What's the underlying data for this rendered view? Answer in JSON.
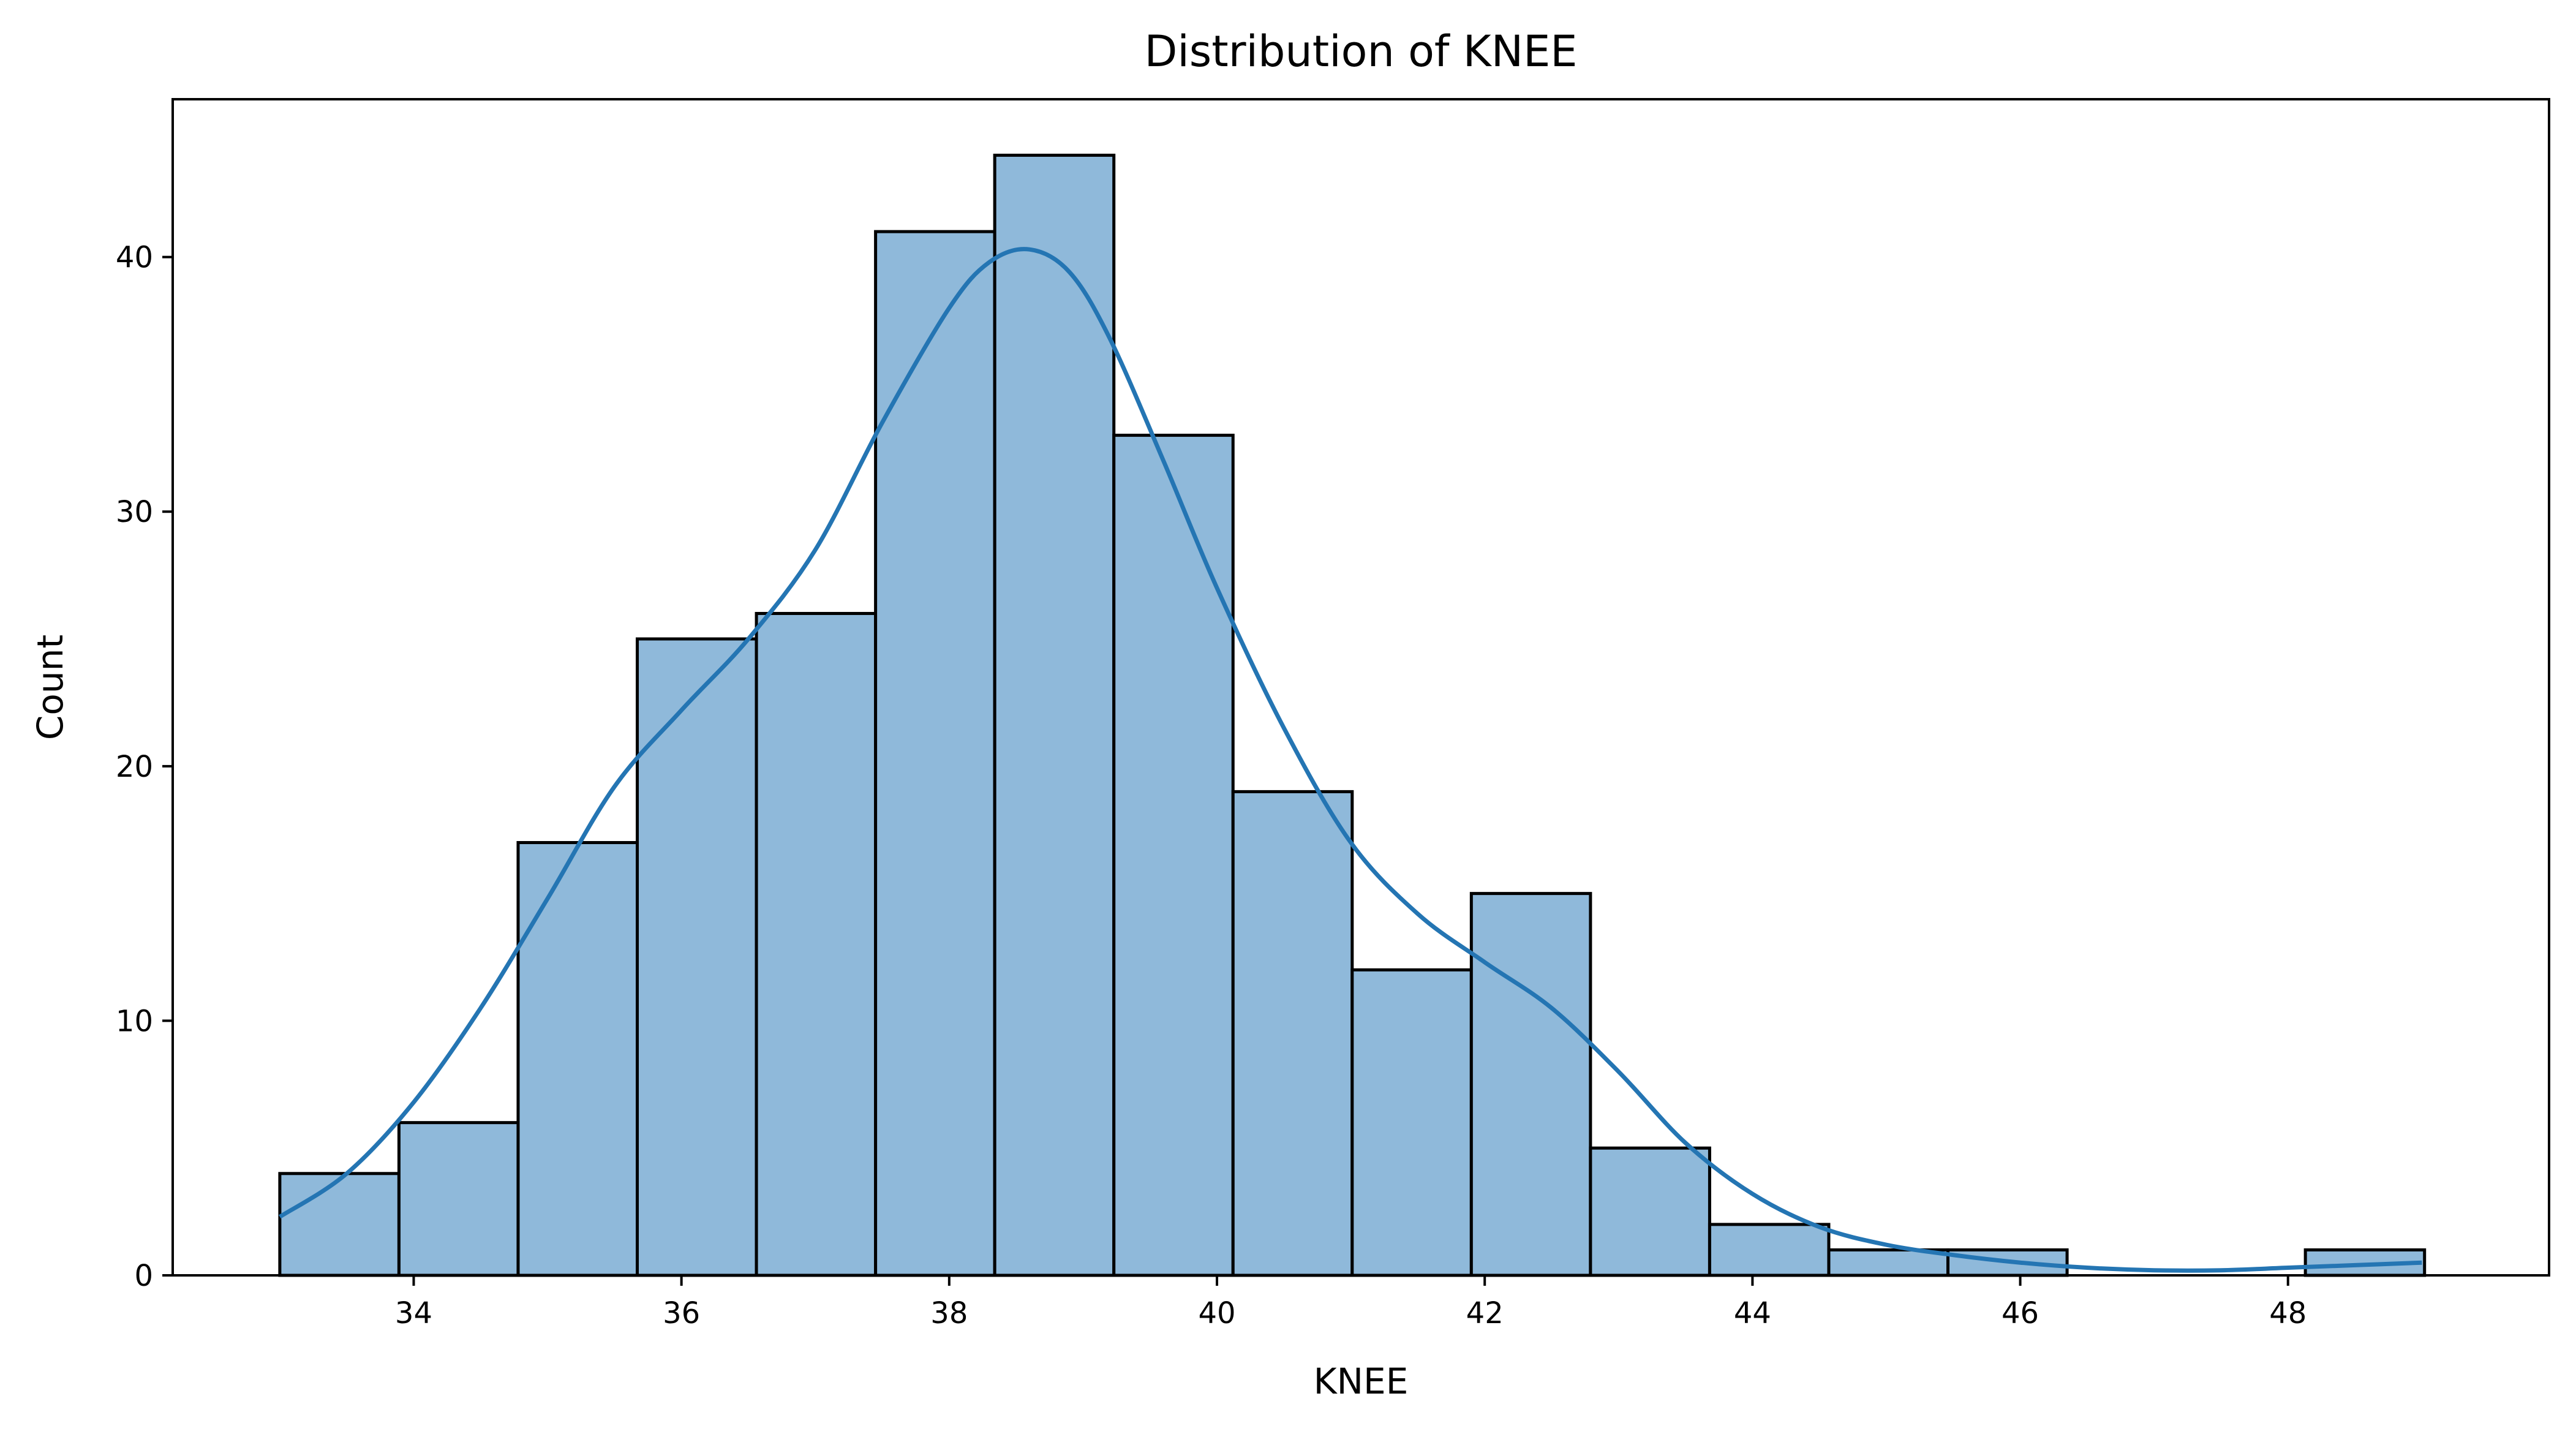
{
  "chart_data": {
    "type": "bar",
    "title": "Distribution of KNEE",
    "xlabel": "KNEE",
    "ylabel": "Count",
    "xlim": [
      32.2,
      49.95
    ],
    "ylim": [
      0,
      46.2
    ],
    "xticks": [
      34,
      36,
      38,
      40,
      42,
      44,
      46,
      48
    ],
    "yticks": [
      0,
      10,
      20,
      30,
      40
    ],
    "bin_edges": [
      33.0,
      33.89,
      34.78,
      35.67,
      36.56,
      37.45,
      38.34,
      39.23,
      40.12,
      41.01,
      41.9,
      42.79,
      43.68,
      44.57,
      45.46,
      46.35,
      47.24,
      48.13,
      49.02
    ],
    "values": [
      4,
      6,
      17,
      25,
      26,
      41,
      44,
      33,
      19,
      12,
      15,
      5,
      2,
      1,
      1,
      0,
      0,
      1
    ],
    "bar_color": "#8fb9da",
    "edge_color": "#000000",
    "kde": {
      "color": "#2475b3",
      "x": [
        33.0,
        33.5,
        34.0,
        34.5,
        35.0,
        35.5,
        36.0,
        36.5,
        37.0,
        37.5,
        38.0,
        38.3,
        38.6,
        38.9,
        39.2,
        39.6,
        40.0,
        40.5,
        41.0,
        41.5,
        42.0,
        42.5,
        43.0,
        43.5,
        44.0,
        44.5,
        45.0,
        45.5,
        46.0,
        46.5,
        47.0,
        47.5,
        48.0,
        48.5,
        49.0
      ],
      "y": [
        2.3,
        4.0,
        6.8,
        10.5,
        14.8,
        19.2,
        22.2,
        25.0,
        28.5,
        33.5,
        38.0,
        39.8,
        40.3,
        39.4,
        36.8,
        32.0,
        27.0,
        21.5,
        17.0,
        14.2,
        12.3,
        10.5,
        8.0,
        5.2,
        3.2,
        1.9,
        1.2,
        0.8,
        0.5,
        0.3,
        0.2,
        0.2,
        0.3,
        0.4,
        0.5
      ]
    }
  }
}
